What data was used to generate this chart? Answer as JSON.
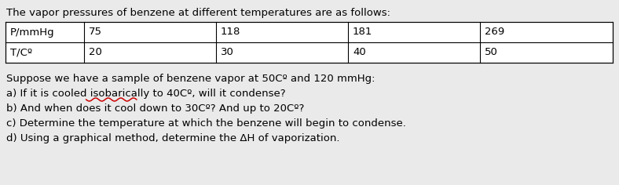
{
  "title": "The vapor pressures of benzene at different temperatures are as follows:",
  "table_headers": [
    "P/mmHg",
    "75",
    "118",
    "181",
    "269"
  ],
  "table_row2": [
    "T/Cº",
    "20",
    "30",
    "40",
    "50"
  ],
  "intro": "Suppose we have a sample of benzene vapor at 50Cº and 120 mmHg:",
  "line_a": "a) If it is cooled isobarically to 40Cº, will it condense?",
  "line_a_prefix": "a) If it is cooled ",
  "line_a_underline_word": "isobarically",
  "line_b": "b) And when does it cool down to 30Cº? And up to 20Cº?",
  "line_c": "c) Determine the temperature at which the benzene will begin to condense.",
  "line_d": "d) Using a graphical method, determine the ΔH of vaporization.",
  "bg_color": "#eaeaea",
  "table_bg": "#ffffff",
  "border_color": "#000000",
  "text_color": "#000000",
  "underline_color": "#cc0000",
  "font_size": 9.5,
  "title_font_size": 9.5
}
